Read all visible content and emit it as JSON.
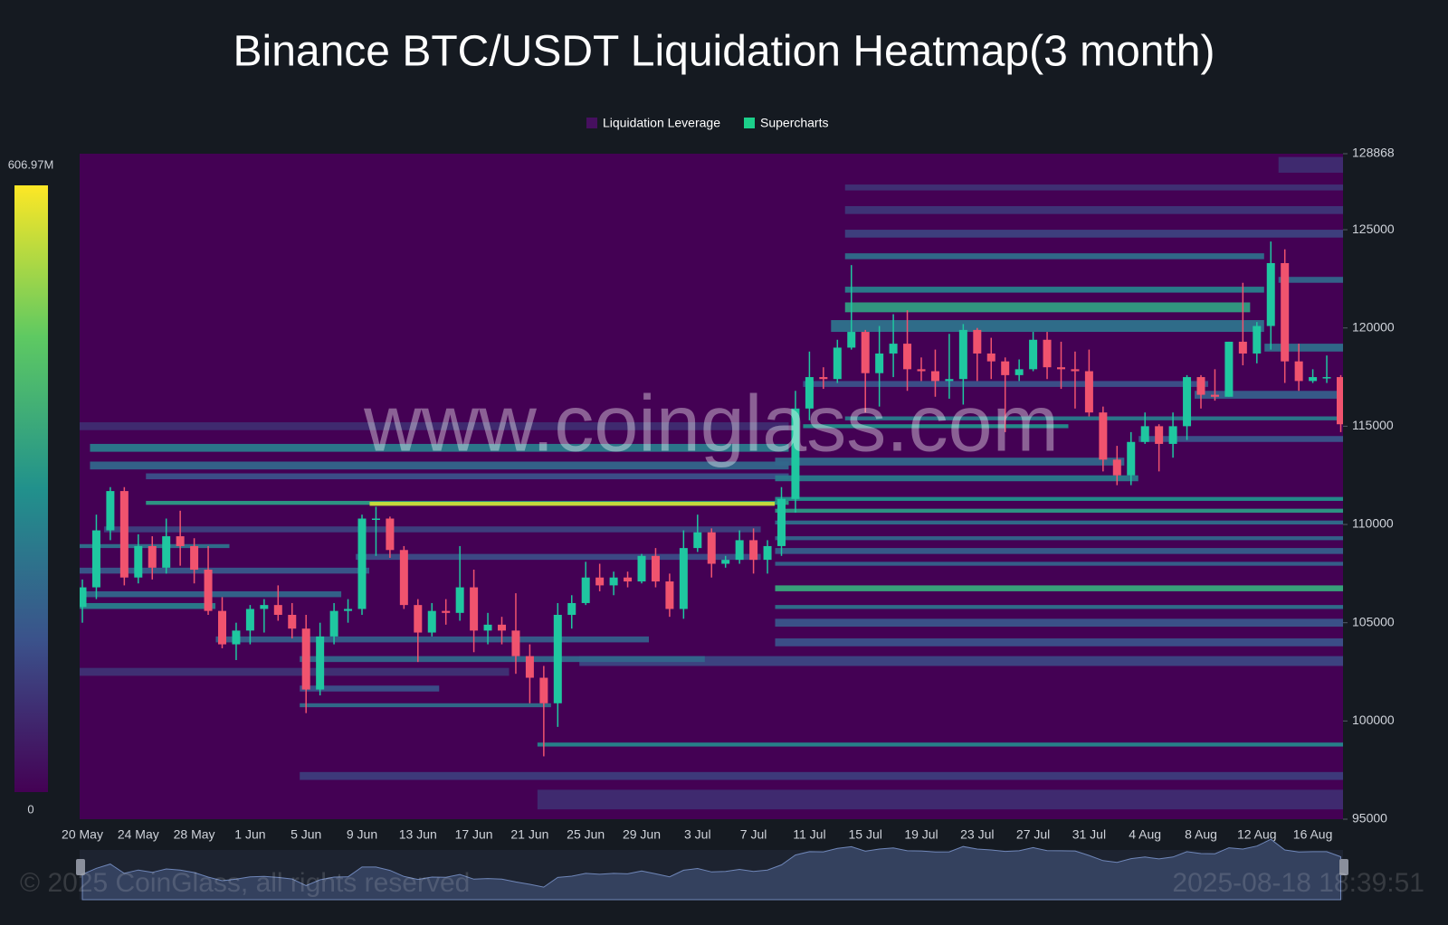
{
  "chart_data": {
    "type": "heatmap",
    "title": "Binance BTC/USDT Liquidation Heatmap(3 month)",
    "watermark": "www.coinglass.com",
    "footer_left": "© 2025 CoinGlass, all rights reserved",
    "footer_right": "2025-08-18 18:39:51",
    "series": [
      {
        "name": "Liquidation Leverage",
        "color": "#46105f"
      },
      {
        "name": "Supercharts",
        "color": "#1ccf8a"
      }
    ],
    "up_color": "#1fc7a0",
    "down_color": "#f0536e",
    "colorscale": [
      "#440154",
      "#3b528b",
      "#21918c",
      "#5ec962",
      "#fde725"
    ],
    "colorbar": {
      "lim": [
        0,
        606.97
      ],
      "ticks": [
        0,
        {
          "value": 606.97,
          "label": "606.97M"
        }
      ]
    },
    "ylim": [
      95000,
      128868
    ],
    "yticks": [
      95000,
      100000,
      105000,
      110000,
      115000,
      120000,
      125000,
      128868
    ],
    "categories": [
      "20 May",
      null,
      null,
      null,
      "24 May",
      null,
      null,
      null,
      "28 May",
      null,
      null,
      null,
      "1 Jun",
      null,
      null,
      null,
      "5 Jun",
      null,
      null,
      null,
      "9 Jun",
      null,
      null,
      null,
      "13 Jun",
      null,
      null,
      null,
      "17 Jun",
      null,
      null,
      null,
      "21 Jun",
      null,
      null,
      null,
      "25 Jun",
      null,
      null,
      null,
      "29 Jun",
      null,
      null,
      null,
      "3 Jul",
      null,
      null,
      null,
      "7 Jul",
      null,
      null,
      null,
      "11 Jul",
      null,
      null,
      null,
      "15 Jul",
      null,
      null,
      null,
      "19 Jul",
      null,
      null,
      null,
      "23 Jul",
      null,
      null,
      null,
      "27 Jul",
      null,
      null,
      null,
      "31 Jul",
      null,
      null,
      null,
      "4 Aug",
      null,
      null,
      null,
      "8 Aug",
      null,
      null,
      null,
      "12 Aug",
      null,
      null,
      null,
      "16 Aug",
      null,
      null
    ],
    "ohlc": [
      [
        105800,
        107200,
        105000,
        106800
      ],
      [
        106800,
        110500,
        106200,
        109700
      ],
      [
        109700,
        111900,
        109200,
        111700
      ],
      [
        111700,
        111900,
        106900,
        107300
      ],
      [
        107300,
        109500,
        107000,
        108900
      ],
      [
        108900,
        109400,
        107200,
        107800
      ],
      [
        107800,
        110300,
        107500,
        109400
      ],
      [
        109400,
        110700,
        107900,
        108900
      ],
      [
        108900,
        109300,
        107000,
        107700
      ],
      [
        107700,
        108900,
        105400,
        105600
      ],
      [
        105600,
        106300,
        103700,
        103900
      ],
      [
        103900,
        105000,
        103100,
        104600
      ],
      [
        104600,
        105900,
        103900,
        105700
      ],
      [
        105700,
        106200,
        104500,
        105900
      ],
      [
        105900,
        106900,
        105100,
        105400
      ],
      [
        105400,
        106000,
        104200,
        104700
      ],
      [
        104700,
        105400,
        100400,
        101600
      ],
      [
        101600,
        105000,
        101300,
        104300
      ],
      [
        104300,
        106000,
        103900,
        105600
      ],
      [
        105600,
        106200,
        105000,
        105700
      ],
      [
        105700,
        110500,
        105400,
        110300
      ],
      [
        110300,
        110900,
        108400,
        110300
      ],
      [
        110300,
        110400,
        108300,
        108700
      ],
      [
        108700,
        108900,
        105700,
        105900
      ],
      [
        105900,
        106200,
        103000,
        104500
      ],
      [
        104500,
        106000,
        104300,
        105600
      ],
      [
        105600,
        106200,
        104900,
        105500
      ],
      [
        105500,
        108900,
        105100,
        106800
      ],
      [
        106800,
        107700,
        103500,
        104600
      ],
      [
        104600,
        105500,
        103900,
        104900
      ],
      [
        104900,
        105300,
        103900,
        104600
      ],
      [
        104600,
        106500,
        102400,
        103300
      ],
      [
        103300,
        103900,
        100900,
        102200
      ],
      [
        102200,
        102800,
        98200,
        100900
      ],
      [
        100900,
        106000,
        99700,
        105400
      ],
      [
        105400,
        106400,
        104700,
        106000
      ],
      [
        106000,
        108100,
        105900,
        107300
      ],
      [
        107300,
        108000,
        106600,
        106900
      ],
      [
        106900,
        107600,
        106400,
        107300
      ],
      [
        107300,
        107600,
        106800,
        107100
      ],
      [
        107100,
        108500,
        107000,
        108400
      ],
      [
        108400,
        108800,
        106800,
        107100
      ],
      [
        107100,
        107500,
        105300,
        105700
      ],
      [
        105700,
        109700,
        105200,
        108800
      ],
      [
        108800,
        110500,
        108600,
        109600
      ],
      [
        109600,
        109800,
        107300,
        108000
      ],
      [
        108000,
        108400,
        107800,
        108200
      ],
      [
        108200,
        109700,
        108000,
        109200
      ],
      [
        109200,
        109800,
        107500,
        108200
      ],
      [
        108200,
        109200,
        107500,
        108900
      ],
      [
        108900,
        111900,
        108400,
        111300
      ],
      [
        111300,
        116800,
        110600,
        115900
      ],
      [
        115900,
        118800,
        115300,
        117500
      ],
      [
        117500,
        118000,
        116900,
        117400
      ],
      [
        117400,
        119400,
        117200,
        119000
      ],
      [
        119000,
        123200,
        118900,
        119800
      ],
      [
        119800,
        119900,
        115700,
        117700
      ],
      [
        117700,
        120100,
        116000,
        118700
      ],
      [
        118700,
        120700,
        117500,
        119200
      ],
      [
        119200,
        120900,
        116800,
        117900
      ],
      [
        117900,
        118500,
        117300,
        117800
      ],
      [
        117800,
        118900,
        116500,
        117300
      ],
      [
        117300,
        119700,
        116400,
        117400
      ],
      [
        117400,
        120200,
        116100,
        119900
      ],
      [
        119900,
        120000,
        117300,
        118700
      ],
      [
        118700,
        119500,
        117400,
        118300
      ],
      [
        118300,
        118500,
        114700,
        117600
      ],
      [
        117600,
        118400,
        117300,
        117900
      ],
      [
        117900,
        119800,
        117800,
        119400
      ],
      [
        119400,
        119800,
        117400,
        118000
      ],
      [
        118000,
        119300,
        116900,
        117900
      ],
      [
        117900,
        118800,
        115900,
        117800
      ],
      [
        117800,
        118900,
        115500,
        115700
      ],
      [
        115700,
        116000,
        112700,
        113300
      ],
      [
        113300,
        114000,
        112000,
        112500
      ],
      [
        112500,
        114700,
        112000,
        114200
      ],
      [
        114200,
        115700,
        114100,
        115000
      ],
      [
        115000,
        115100,
        112700,
        114100
      ],
      [
        114100,
        115700,
        113400,
        115000
      ],
      [
        115000,
        117600,
        114300,
        117500
      ],
      [
        117500,
        117600,
        115900,
        116600
      ],
      [
        116600,
        117900,
        116300,
        116500
      ],
      [
        116500,
        119300,
        116500,
        119300
      ],
      [
        119300,
        122300,
        118100,
        118700
      ],
      [
        118700,
        120300,
        118200,
        120100
      ],
      [
        120100,
        124400,
        118900,
        123300
      ],
      [
        123300,
        124000,
        117200,
        118300
      ],
      [
        118300,
        119200,
        116800,
        117300
      ],
      [
        117300,
        117900,
        117200,
        117500
      ],
      [
        117500,
        118600,
        117200,
        117500
      ],
      [
        117500,
        117600,
        114700,
        115100
      ]
    ],
    "levels": [
      [
        0,
        50,
        114800,
        115200,
        80
      ],
      [
        0,
        30,
        102300,
        102700,
        90
      ],
      [
        33,
        90,
        95500,
        96500,
        80
      ],
      [
        16,
        90,
        97000,
        97400,
        110
      ],
      [
        2,
        48,
        109600,
        109900,
        120
      ],
      [
        36,
        90,
        102800,
        103300,
        130
      ],
      [
        20,
        48,
        108200,
        108500,
        140
      ],
      [
        5,
        50,
        112300,
        112600,
        150
      ],
      [
        16,
        25,
        101500,
        101800,
        150
      ],
      [
        50,
        90,
        103800,
        104200,
        150
      ],
      [
        50,
        90,
        104800,
        105200,
        160
      ],
      [
        10,
        40,
        104000,
        104300,
        180
      ],
      [
        0,
        20,
        107500,
        107800,
        170
      ],
      [
        50,
        90,
        108500,
        108800,
        180
      ],
      [
        50,
        90,
        107900,
        108100,
        190
      ],
      [
        0,
        18,
        106300,
        106600,
        200
      ],
      [
        16,
        44,
        103000,
        103300,
        200
      ],
      [
        1,
        50,
        112800,
        113200,
        200
      ],
      [
        50,
        90,
        109200,
        109400,
        200
      ],
      [
        50,
        74,
        113000,
        113400,
        200
      ],
      [
        55,
        90,
        124600,
        125000,
        120
      ],
      [
        55,
        90,
        125800,
        126200,
        100
      ],
      [
        55,
        90,
        127000,
        127300,
        90
      ],
      [
        86,
        90,
        127900,
        128700,
        80
      ],
      [
        16,
        33,
        100700,
        100900,
        220
      ],
      [
        0,
        10,
        108800,
        109000,
        230
      ],
      [
        50,
        90,
        110000,
        110200,
        220
      ],
      [
        50,
        90,
        105700,
        105900,
        230
      ],
      [
        54,
        84,
        119800,
        120400,
        230
      ],
      [
        55,
        84,
        123500,
        123800,
        220
      ],
      [
        85,
        90,
        118800,
        119200,
        220
      ],
      [
        52,
        80,
        117000,
        117300,
        150
      ],
      [
        80,
        90,
        116400,
        116800,
        180
      ],
      [
        76,
        90,
        114200,
        114500,
        160
      ],
      [
        86,
        90,
        122300,
        122600,
        200
      ],
      [
        1,
        50,
        113700,
        114100,
        250
      ],
      [
        0,
        9,
        105700,
        106000,
        260
      ],
      [
        50,
        75,
        112200,
        112500,
        250
      ],
      [
        55,
        90,
        115300,
        115500,
        250
      ],
      [
        55,
        84,
        121800,
        122100,
        260
      ],
      [
        33,
        90,
        98700,
        98900,
        280
      ],
      [
        50,
        90,
        111200,
        111400,
        300
      ],
      [
        52,
        70,
        114900,
        115100,
        300
      ],
      [
        5,
        50,
        111000,
        111200,
        330
      ],
      [
        50,
        90,
        110600,
        110800,
        330
      ],
      [
        55,
        83,
        120800,
        121300,
        340
      ],
      [
        50,
        90,
        106600,
        106900,
        360
      ],
      [
        21,
        49,
        110950,
        111150,
        560
      ]
    ]
  }
}
